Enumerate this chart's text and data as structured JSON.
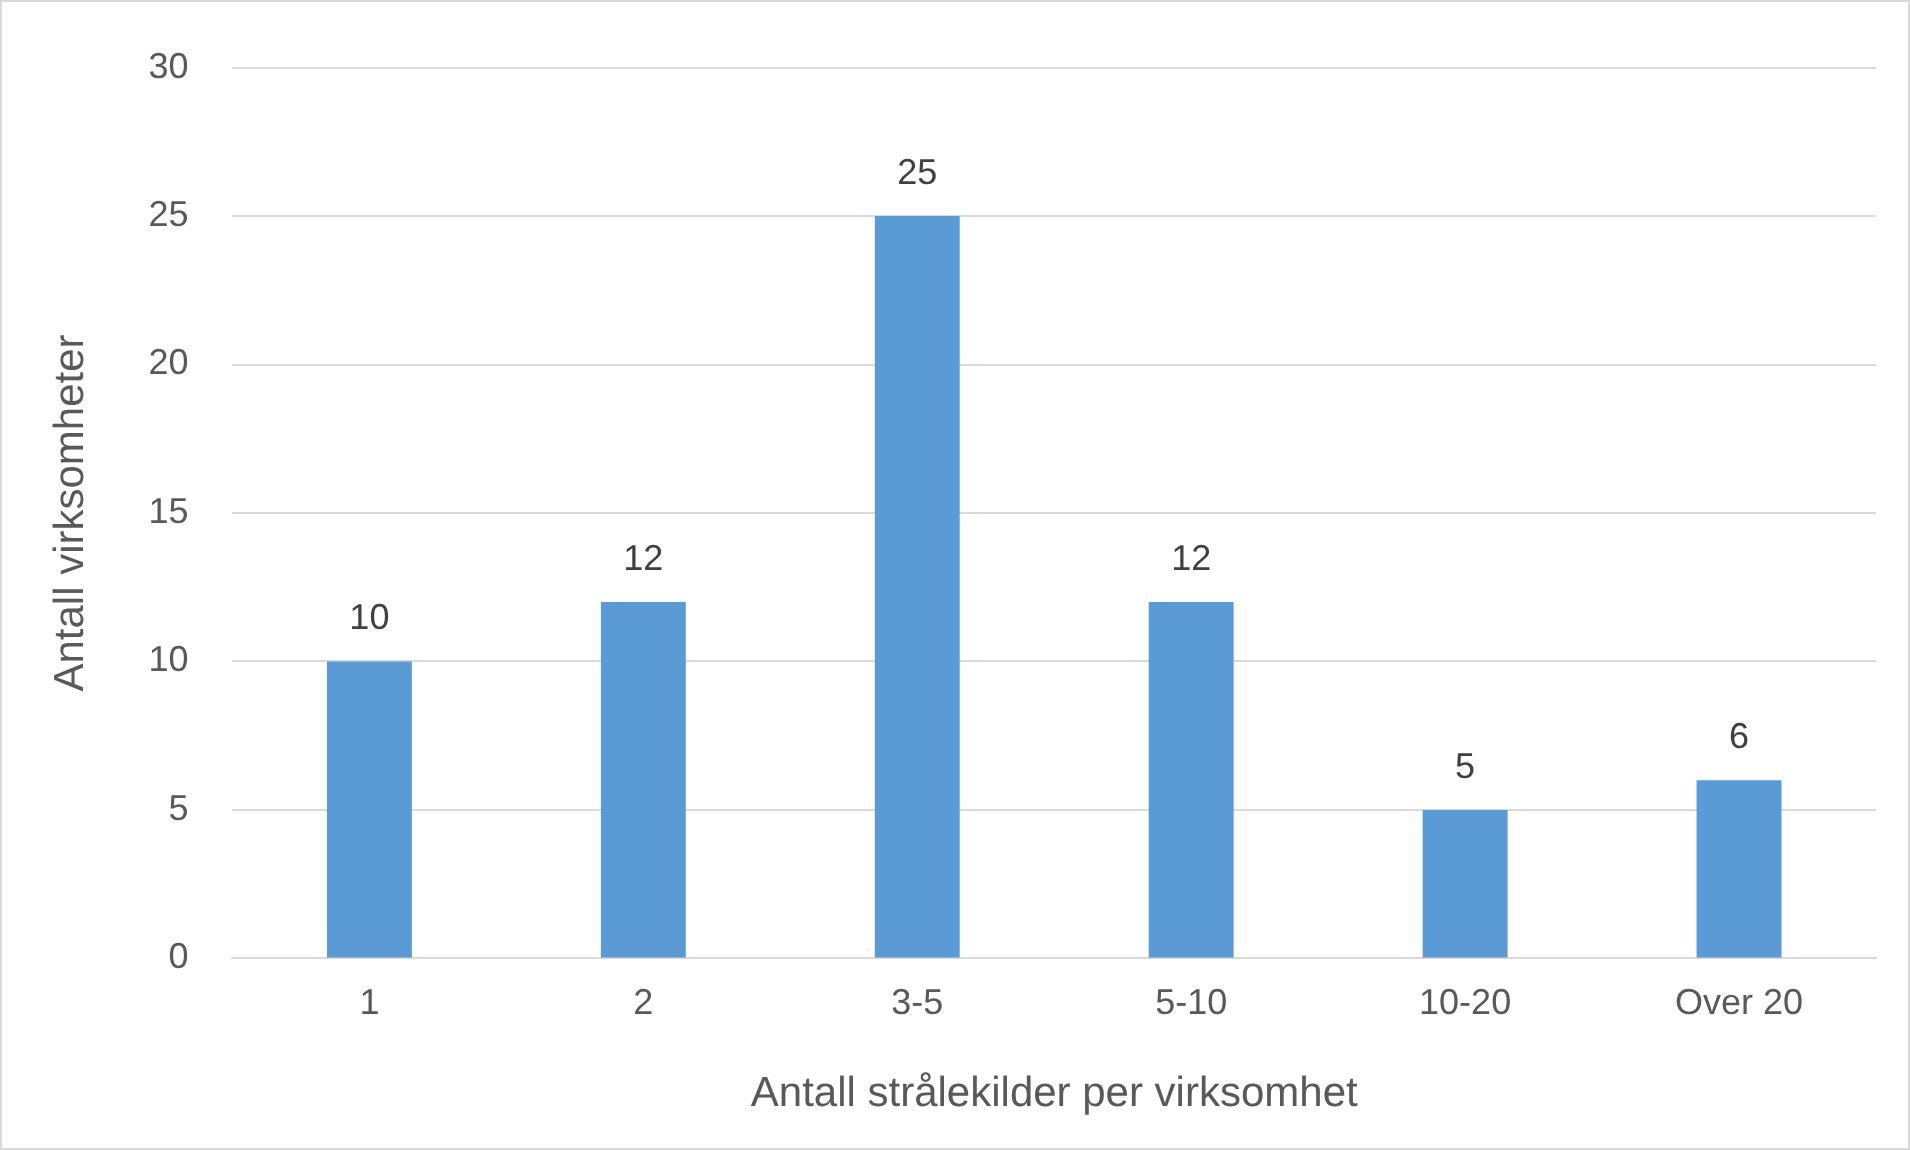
{
  "chart_data": {
    "type": "bar",
    "xlabel": "Antall strålekilder per virksomhet",
    "ylabel": "Antall virksomheter",
    "categories": [
      "1",
      "2",
      "3-5",
      "5-10",
      "10-20",
      "Over 20"
    ],
    "values": [
      10,
      12,
      25,
      12,
      5,
      6
    ],
    "color": "#5b9bd5",
    "ylim": [
      0,
      30
    ],
    "yticks": [
      0,
      5,
      10,
      15,
      20,
      25,
      30
    ],
    "grid": "y",
    "data_labels": true,
    "legend": false
  }
}
